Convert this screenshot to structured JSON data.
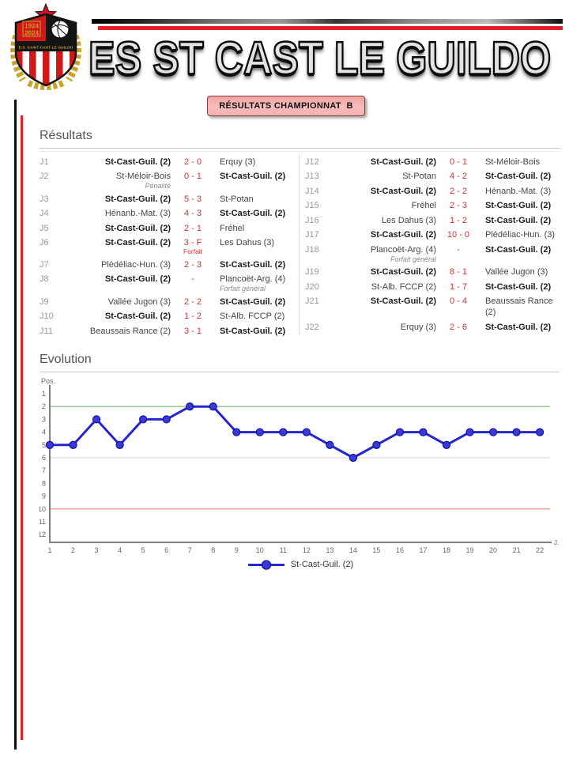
{
  "header": {
    "club_name": "ES ST CAST LE GUILDO",
    "crest": {
      "year_top": "1924",
      "year_bottom": "2024",
      "ribbon": "E.S. SAINT-CAST LE GUILDO"
    },
    "accent_black": "#0d0d0d",
    "accent_red": "#e31e24"
  },
  "banner": {
    "label": "RÉSULTATS CHAMPIONNAT  B",
    "bg": "#f2aaaa",
    "border": "#8b3a3a"
  },
  "results": {
    "title": "Résultats",
    "score_color": "#cc3333",
    "columns": [
      [
        {
          "day": "J1",
          "home": "St-Cast-Guil. (2)",
          "score": "2 - 0",
          "away": "Erquy (3)",
          "bold": "home"
        },
        {
          "day": "J2",
          "home": "St-Méloir-Bois",
          "score": "0 - 1",
          "away": "St-Cast-Guil. (2)",
          "bold": "away",
          "note": {
            "pos": "home",
            "text": "Pénalité"
          }
        },
        {
          "day": "J3",
          "home": "St-Cast-Guil. (2)",
          "score": "5 - 3",
          "away": "St-Potan",
          "bold": "home"
        },
        {
          "day": "J4",
          "home": "Hénanb.-Mat. (3)",
          "score": "4 - 3",
          "away": "St-Cast-Guil. (2)",
          "bold": "away"
        },
        {
          "day": "J5",
          "home": "St-Cast-Guil. (2)",
          "score": "2 - 1",
          "away": "Fréhel",
          "bold": "home"
        },
        {
          "day": "J6",
          "home": "St-Cast-Guil. (2)",
          "score": "3 - F",
          "away": "Les Dahus (3)",
          "bold": "home",
          "note": {
            "pos": "score",
            "text": "Forfait"
          }
        },
        {
          "day": "J7",
          "home": "Plédéliac-Hun. (3)",
          "score": "2 - 3",
          "away": "St-Cast-Guil. (2)",
          "bold": "away"
        },
        {
          "day": "J8",
          "home": "St-Cast-Guil. (2)",
          "score": "-",
          "away": "Plancoët-Arg. (4)",
          "bold": "home",
          "note": {
            "pos": "away",
            "text": "Forfait général"
          }
        },
        {
          "day": "J9",
          "home": "Vallée Jugon (3)",
          "score": "2 - 2",
          "away": "St-Cast-Guil. (2)",
          "bold": "away"
        },
        {
          "day": "J10",
          "home": "St-Cast-Guil. (2)",
          "score": "1 - 2",
          "away": "St-Alb. FCCP (2)",
          "bold": "home"
        },
        {
          "day": "J11",
          "home": "Beaussais Rance (2)",
          "score": "3 - 1",
          "away": "St-Cast-Guil. (2)",
          "bold": "away"
        }
      ],
      [
        {
          "day": "J12",
          "home": "St-Cast-Guil. (2)",
          "score": "0 - 1",
          "away": "St-Méloir-Bois",
          "bold": "home"
        },
        {
          "day": "J13",
          "home": "St-Potan",
          "score": "4 - 2",
          "away": "St-Cast-Guil. (2)",
          "bold": "away"
        },
        {
          "day": "J14",
          "home": "St-Cast-Guil. (2)",
          "score": "2 - 2",
          "away": "Hénanb.-Mat. (3)",
          "bold": "home"
        },
        {
          "day": "J15",
          "home": "Fréhel",
          "score": "2 - 3",
          "away": "St-Cast-Guil. (2)",
          "bold": "away"
        },
        {
          "day": "J16",
          "home": "Les Dahus (3)",
          "score": "1 - 2",
          "away": "St-Cast-Guil. (2)",
          "bold": "away"
        },
        {
          "day": "J17",
          "home": "St-Cast-Guil. (2)",
          "score": "10 - 0",
          "away": "Plédéliac-Hun. (3)",
          "bold": "home"
        },
        {
          "day": "J18",
          "home": "Plancoët-Arg. (4)",
          "score": "-",
          "away": "St-Cast-Guil. (2)",
          "bold": "away",
          "note": {
            "pos": "home",
            "text": "Forfait général"
          }
        },
        {
          "day": "J19",
          "home": "St-Cast-Guil. (2)",
          "score": "8 - 1",
          "away": "Vallée Jugon (3)",
          "bold": "home"
        },
        {
          "day": "J20",
          "home": "St-Alb. FCCP (2)",
          "score": "1 - 7",
          "away": "St-Cast-Guil. (2)",
          "bold": "away"
        },
        {
          "day": "J21",
          "home": "St-Cast-Guil. (2)",
          "score": "0 - 4",
          "away": "Beaussais Rance (2)",
          "bold": "home"
        },
        {
          "day": "J22",
          "home": "Erquy (3)",
          "score": "2 - 6",
          "away": "St-Cast-Guil. (2)",
          "bold": "away"
        }
      ]
    ]
  },
  "evolution": {
    "title": "Evolution"
  },
  "chart_data": {
    "type": "line",
    "title": "Evolution",
    "ylabel": "Pos.",
    "xlabel": "J.",
    "x": [
      1,
      2,
      3,
      4,
      5,
      6,
      7,
      8,
      9,
      10,
      11,
      12,
      13,
      14,
      15,
      16,
      17,
      18,
      19,
      20,
      21,
      22
    ],
    "series": [
      {
        "name": "St-Cast-Guil. (2)",
        "color": "#2525cf",
        "marker_fill": "#3a3ad6",
        "marker_stroke": "#1515a8",
        "values": [
          5,
          5,
          3,
          5,
          3,
          3,
          2,
          2,
          4,
          4,
          4,
          4,
          5,
          6,
          5,
          4,
          4,
          5,
          4,
          4,
          4,
          4
        ]
      }
    ],
    "ylim": [
      1,
      12
    ],
    "y_inverted": true,
    "yticks": [
      1,
      2,
      3,
      4,
      5,
      6,
      7,
      8,
      9,
      10,
      11,
      12
    ],
    "grid": true,
    "reference_lines": [
      {
        "pos": 2,
        "color": "#77b877"
      },
      {
        "pos": 6,
        "color": "#dddddd"
      },
      {
        "pos": 10,
        "color": "#ee8877"
      }
    ],
    "axis_color": "#808080",
    "legend_position": "bottom"
  }
}
